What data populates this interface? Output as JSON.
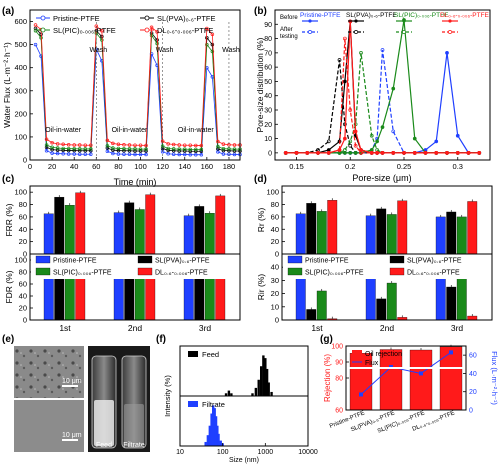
{
  "figure": {
    "panel_labels": [
      "(a)",
      "(b)",
      "(c)",
      "(d)",
      "(e)",
      "(f)",
      "(g)"
    ]
  },
  "chart_data": [
    {
      "id": "a",
      "type": "line",
      "title": "",
      "xlabel": "Time (min)",
      "ylabel": "Water Flux (L·m⁻²·h⁻¹)",
      "xlim": [
        0,
        190
      ],
      "ylim": [
        0,
        650
      ],
      "xticks": [
        0,
        20,
        40,
        60,
        80,
        100,
        120,
        140,
        160,
        180
      ],
      "yticks": [
        0,
        100,
        200,
        300,
        400,
        500,
        600
      ],
      "annotations": [
        {
          "text": "Wash",
          "x": 60
        },
        {
          "text": "Wash",
          "x": 120
        },
        {
          "text": "Wash",
          "x": 180
        },
        {
          "text": "Oil-in-water",
          "x": 30
        },
        {
          "text": "Oil-in-water",
          "x": 90
        },
        {
          "text": "Oil-in-water",
          "x": 150
        }
      ],
      "x": [
        5,
        10,
        15,
        20,
        25,
        30,
        35,
        40,
        45,
        50,
        55,
        60,
        65,
        70,
        75,
        80,
        85,
        90,
        95,
        100,
        105,
        110,
        115,
        120,
        125,
        130,
        135,
        140,
        145,
        150,
        155,
        160,
        165,
        170,
        175,
        180,
        185,
        190
      ],
      "series": [
        {
          "name": "Pristine-PTFE",
          "color": "#1f3fff",
          "marker": "circle",
          "values": [
            500,
            450,
            40,
            30,
            28,
            27,
            26,
            26,
            25,
            25,
            25,
            480,
            430,
            38,
            28,
            26,
            25,
            25,
            24,
            24,
            24,
            460,
            410,
            36,
            27,
            25,
            24,
            24,
            23,
            23,
            23,
            400,
            360,
            35,
            26,
            25,
            24,
            24
          ]
        },
        {
          "name": "SL(PVA)₀.₆-PTFE",
          "color": "#000000",
          "marker": "circle",
          "values": [
            570,
            545,
            55,
            45,
            43,
            42,
            41,
            41,
            40,
            40,
            40,
            560,
            535,
            52,
            43,
            41,
            40,
            40,
            39,
            39,
            39,
            550,
            520,
            50,
            42,
            40,
            39,
            39,
            38,
            38,
            38,
            530,
            500,
            48,
            41,
            40,
            39,
            39
          ]
        },
        {
          "name": "SL(PIC)₀.₀₀₆-PTFE",
          "color": "#1a8a1a",
          "marker": "circle",
          "values": [
            560,
            530,
            65,
            55,
            52,
            50,
            49,
            49,
            48,
            48,
            48,
            550,
            520,
            62,
            52,
            50,
            49,
            48,
            48,
            47,
            47,
            540,
            505,
            60,
            50,
            48,
            47,
            47,
            46,
            46,
            46,
            500,
            470,
            58,
            49,
            48,
            47,
            47
          ]
        },
        {
          "name": "DL₀.₆-₀.₀₀₆-PTFE",
          "color": "#ff1a1a",
          "marker": "circle",
          "values": [
            585,
            565,
            90,
            75,
            70,
            68,
            66,
            65,
            65,
            64,
            64,
            580,
            560,
            85,
            72,
            68,
            66,
            65,
            64,
            64,
            63,
            575,
            555,
            82,
            70,
            67,
            65,
            64,
            64,
            63,
            63,
            570,
            545,
            80,
            69,
            66,
            65,
            65
          ]
        }
      ]
    },
    {
      "id": "b",
      "type": "line",
      "title": "",
      "xlabel": "Pore-size (μm)",
      "ylabel": "Pore-size distribution (%)",
      "xlim": [
        0.13,
        0.33
      ],
      "ylim": [
        -5,
        100
      ],
      "xticks": [
        0.15,
        0.2,
        0.25,
        0.3
      ],
      "yticks": [
        0,
        10,
        20,
        30,
        40,
        50,
        60,
        70,
        80,
        90
      ],
      "legend_labels": {
        "before": "Before",
        "after": "After testing"
      },
      "x": [
        0.14,
        0.15,
        0.16,
        0.17,
        0.18,
        0.19,
        0.195,
        0.2,
        0.205,
        0.21,
        0.22,
        0.225,
        0.23,
        0.24,
        0.25,
        0.26,
        0.27,
        0.28,
        0.29,
        0.3,
        0.31,
        0.32
      ],
      "series": [
        {
          "name": "Pristine-PTFE",
          "color": "#1f3fff",
          "style": "solid",
          "values": [
            0,
            0,
            0,
            0,
            0,
            0,
            0,
            0,
            0,
            0,
            0,
            0,
            0,
            0,
            0,
            0,
            2,
            8,
            70,
            12,
            0,
            0
          ]
        },
        {
          "name": "Pristine-PTFE",
          "color": "#1f3fff",
          "style": "dashed",
          "values": [
            0,
            0,
            0,
            0,
            0,
            0,
            0,
            0,
            0,
            0,
            2,
            10,
            72,
            15,
            0,
            0,
            0,
            0,
            0,
            0,
            0,
            0
          ]
        },
        {
          "name": "SL(PVA)₀.₆-PTFE",
          "color": "#000000",
          "style": "solid",
          "values": [
            0,
            0,
            0,
            0,
            2,
            8,
            50,
            92,
            12,
            2,
            0,
            0,
            0,
            0,
            0,
            0,
            0,
            0,
            0,
            0,
            0,
            0
          ]
        },
        {
          "name": "SL(PVA)₀.₆-PTFE",
          "color": "#000000",
          "style": "dashed",
          "values": [
            0,
            0,
            0,
            2,
            8,
            65,
            20,
            5,
            0,
            0,
            0,
            0,
            0,
            0,
            0,
            0,
            0,
            0,
            0,
            0,
            0,
            0
          ]
        },
        {
          "name": "SL(PIC)₀.₀₀₆-PTFE",
          "color": "#1a8a1a",
          "style": "solid",
          "values": [
            0,
            0,
            0,
            0,
            0,
            0,
            0,
            0,
            0,
            0,
            2,
            8,
            18,
            45,
            93,
            10,
            0,
            0,
            0,
            0,
            0,
            0
          ]
        },
        {
          "name": "SL(PIC)₀.₀₀₆-PTFE",
          "color": "#1a8a1a",
          "style": "dashed",
          "values": [
            0,
            0,
            0,
            0,
            0,
            0,
            2,
            8,
            20,
            70,
            12,
            2,
            0,
            0,
            0,
            0,
            0,
            0,
            0,
            0,
            0,
            0
          ]
        },
        {
          "name": "DL₀.₆-₀.₀₀₆-PTFE",
          "color": "#ff1a1a",
          "style": "solid",
          "values": [
            0,
            0,
            0,
            0,
            0,
            2,
            10,
            92,
            15,
            2,
            0,
            0,
            0,
            0,
            0,
            0,
            0,
            0,
            0,
            0,
            0,
            0
          ]
        },
        {
          "name": "DL₀.₆-₀.₀₀₆-PTFE",
          "color": "#ff1a1a",
          "style": "dashed",
          "values": [
            0,
            0,
            0,
            0,
            0,
            2,
            80,
            30,
            5,
            0,
            0,
            0,
            0,
            0,
            0,
            0,
            0,
            0,
            0,
            0,
            0,
            0
          ]
        }
      ]
    },
    {
      "id": "c",
      "type": "bar",
      "title": "",
      "xlabel": "",
      "categories": [
        "1st",
        "2nd",
        "3rd"
      ],
      "top": {
        "ylabel": "FRR (%)",
        "ylim": [
          0,
          110
        ],
        "yticks": [
          0,
          20,
          40,
          60,
          80,
          100
        ]
      },
      "bottom": {
        "ylabel": "FDR (%)",
        "ylim": [
          0,
          110
        ],
        "yticks": [
          0,
          20,
          40,
          60,
          80,
          100
        ]
      },
      "series": [
        {
          "name": "Pristine-PTFE",
          "color": "#1f3fff",
          "frr": [
            65,
            67,
            62
          ],
          "fdr": [
            94,
            95,
            98
          ]
        },
        {
          "name": "SL(PVA)₀.₆-PTFE",
          "color": "#000000",
          "frr": [
            92,
            83,
            77
          ],
          "fdr": [
            91,
            90,
            93
          ]
        },
        {
          "name": "SL(PIC)₀.₀₀₆-PTFE",
          "color": "#1a8a1a",
          "frr": [
            79,
            72,
            66
          ],
          "fdr": [
            90,
            91,
            92
          ]
        },
        {
          "name": "DL₀.₆-₀.₀₀₆-PTFE",
          "color": "#ff1a1a",
          "frr": [
            99,
            96,
            94
          ],
          "fdr": [
            88,
            89,
            89
          ]
        }
      ]
    },
    {
      "id": "d",
      "type": "bar",
      "title": "",
      "xlabel": "",
      "categories": [
        "1st",
        "2nd",
        "3rd"
      ],
      "top": {
        "ylabel": "Rr (%)",
        "ylim": [
          0,
          110
        ],
        "yticks": [
          0,
          20,
          40,
          60,
          80,
          100
        ]
      },
      "bottom": {
        "ylabel": "Rir (%)",
        "ylim": [
          0,
          50
        ],
        "yticks": [
          0,
          10,
          20,
          30,
          40
        ]
      },
      "series": [
        {
          "name": "Pristine-PTFE",
          "color": "#1f3fff",
          "rr": [
            65,
            62,
            60
          ],
          "rir": [
            32,
            36,
            38
          ]
        },
        {
          "name": "SL(PVA)₀.₆-PTFE",
          "color": "#000000",
          "rr": [
            82,
            73,
            68
          ],
          "rir": [
            8,
            16,
            25
          ]
        },
        {
          "name": "SL(PIC)₀.₀₀₆-PTFE",
          "color": "#1a8a1a",
          "rr": [
            69,
            64,
            60
          ],
          "rir": [
            22,
            28,
            34
          ]
        },
        {
          "name": "DL₀.₆-₀.₀₀₆-PTFE",
          "color": "#ff1a1a",
          "rr": [
            87,
            86,
            85
          ],
          "rir": [
            1,
            2,
            3
          ]
        }
      ]
    },
    {
      "id": "f",
      "type": "bar",
      "title": "",
      "xlabel": "Size (nm)",
      "ylabel": "Intensity (%)",
      "xscale": "log",
      "xlim": [
        10,
        10000
      ],
      "xticks": [
        10,
        100,
        1000,
        10000
      ],
      "series": [
        {
          "name": "Feed",
          "color": "#000000",
          "x": [
            120,
            140,
            160,
            500,
            600,
            700,
            800,
            900,
            1000,
            1100,
            1200,
            1400
          ],
          "values": [
            2,
            4,
            2,
            2,
            6,
            12,
            22,
            30,
            28,
            20,
            10,
            3
          ]
        },
        {
          "name": "Filtrate",
          "color": "#1f3fff",
          "x": [
            40,
            45,
            50,
            55,
            60,
            65,
            70,
            75,
            80,
            90,
            100
          ],
          "values": [
            3,
            8,
            15,
            24,
            30,
            28,
            22,
            15,
            9,
            4,
            2
          ]
        }
      ]
    },
    {
      "id": "g",
      "type": "bar",
      "title": "",
      "xlabel": "",
      "ylabel": "Rejection (%)",
      "y2label": "Flux (L·m⁻²·h⁻¹)",
      "ylim": [
        0,
        100
      ],
      "yticks": [
        0,
        20,
        40,
        60,
        80,
        90,
        100
      ],
      "y2lim": [
        0,
        70
      ],
      "y2ticks": [
        0,
        20,
        40,
        60
      ],
      "legend": [
        "Oil rejection",
        "Flux"
      ],
      "categories": [
        "Pristine-PTFE",
        "SL(PVA)₀.₆-PTFE",
        "SL(PIC)₀.₀₀₆-PTFE",
        "DL₀.₆-₀.₀₀₆-PTFE"
      ],
      "rejection": [
        95.5,
        97.8,
        97.5,
        99.5
      ],
      "flux": [
        17,
        47,
        40,
        63
      ],
      "bar_color": "#ff1a1a",
      "line_color": "#1f3fff"
    }
  ],
  "panel_e": {
    "scale_top": "10 μm",
    "scale_bottom": "10 μm",
    "vial_labels": [
      "Feed",
      "Filtrate"
    ]
  }
}
